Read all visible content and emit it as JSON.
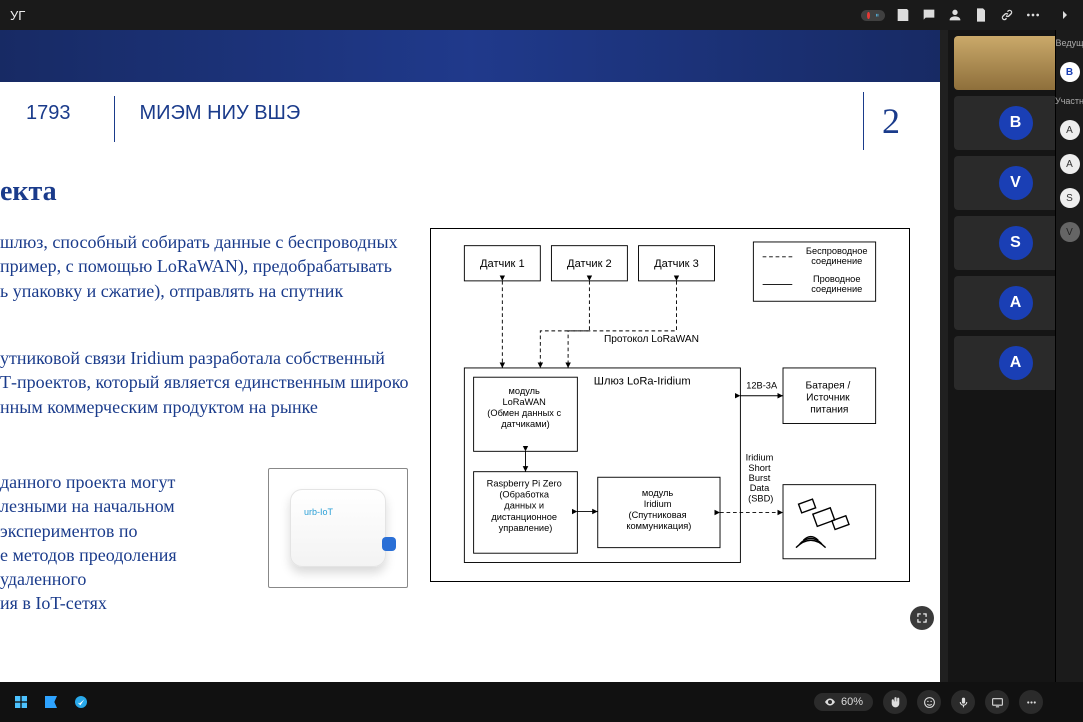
{
  "topbar": {
    "title_fragment": "УГ",
    "rec_label": ""
  },
  "sidebar_rail": {
    "label_host": "Ведущ",
    "label_part": "Участн",
    "badges": [
      "A",
      "A",
      "S",
      "V"
    ]
  },
  "participants": [
    {
      "type": "camera"
    },
    {
      "type": "avatar",
      "initial": "B",
      "muted": false
    },
    {
      "type": "avatar",
      "initial": "V",
      "muted": false
    },
    {
      "type": "avatar",
      "initial": "S",
      "muted": true
    },
    {
      "type": "avatar",
      "initial": "A",
      "muted": true
    },
    {
      "type": "avatar",
      "initial": "A",
      "muted": true
    }
  ],
  "zoom_label": "60%",
  "slide": {
    "header_number": "1793",
    "header_org": "МИЭМ НИУ ВШЭ",
    "page_number": "2",
    "title_fragment": "екта",
    "para1": "шлюз, способный собирать данные  с беспроводных\nпример, с помощью LoRaWAN), предобрабатывать\nь упаковку и сжатие), отправлять на спутник",
    "para2": "утниковой связи Iridium разработала собственный\nТ-проектов, который является единственным широко\nнным коммерческим продуктом на рынке",
    "para3": "данного проекта могут\nлезными на начальном\nэкспериментов по\nе методов преодоления\nудаленного\nия в IoT-сетях",
    "device_brand": "urb-IoT",
    "diagram": {
      "sensors": [
        "Датчик 1",
        "Датчик 2",
        "Датчик 3"
      ],
      "legend_wireless": "Беспроводное соединение",
      "legend_wired": "Проводное соединение",
      "protocol_label": "Протокол LoRaWAN",
      "lorawan_module": "модуль LoRaWAN (Обмен данных с датчиками)",
      "gateway": "Шлюз LoRa-Iridium",
      "power_spec": "12В-3А",
      "battery": "Батарея / Источник питания",
      "rpi": "Raspberry Pi Zero (Обработка данных и дистанционное управление)",
      "iridium_module": "модуль Iridium (Спутниковая коммуникация)",
      "sbd": "Iridium Short Burst Data (SBD)"
    }
  },
  "colors": {
    "brand_blue": "#1A3B8B",
    "avatar_blue": "#1a3fb5",
    "rec_red": "#e53935"
  }
}
